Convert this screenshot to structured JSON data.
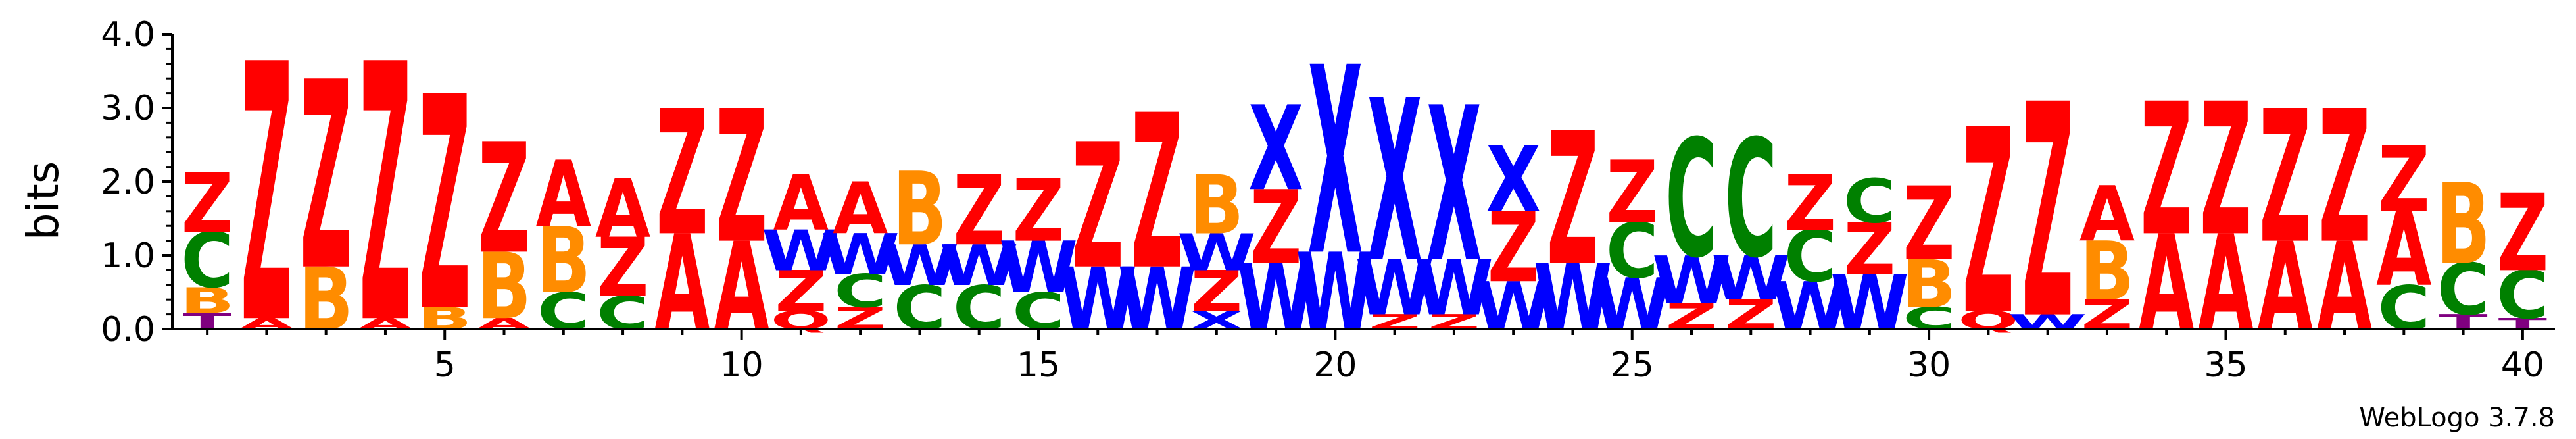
{
  "chart_data": {
    "type": "sequence-logo",
    "ylabel": "bits",
    "ylim": [
      0,
      4.0
    ],
    "y_ticks": [
      "0.0",
      "1.0",
      "2.0",
      "3.0",
      "4.0"
    ],
    "x_ticks": [
      5,
      10,
      15,
      20,
      25,
      30,
      35,
      40
    ],
    "positions_count": 40,
    "credit": "WebLogo 3.7.8",
    "colors": {
      "Z": "#ff0000",
      "A": "#ff0000",
      "Q": "#ff0000",
      "W": "#0000ff",
      "X": "#0000ff",
      "C": "#008000",
      "B": "#ff8c00",
      "T": "#800080"
    },
    "columns": [
      [
        [
          "T",
          0.22
        ],
        [
          "B",
          0.35
        ],
        [
          "C",
          0.75
        ],
        [
          "Z",
          0.8
        ]
      ],
      [
        [
          "A",
          0.15
        ],
        [
          "Z",
          3.5
        ]
      ],
      [
        [
          "B",
          0.85
        ],
        [
          "Z",
          2.55
        ]
      ],
      [
        [
          "A",
          0.15
        ],
        [
          "Z",
          3.5
        ]
      ],
      [
        [
          "B",
          0.3
        ],
        [
          "Z",
          2.9
        ]
      ],
      [
        [
          "A",
          0.15
        ],
        [
          "B",
          0.9
        ],
        [
          "Z",
          1.5
        ]
      ],
      [
        [
          "C",
          0.5
        ],
        [
          "B",
          0.9
        ],
        [
          "A",
          0.9
        ]
      ],
      [
        [
          "C",
          0.45
        ],
        [
          "Z",
          0.8
        ],
        [
          "A",
          0.8
        ]
      ],
      [
        [
          "A",
          1.3
        ],
        [
          "Z",
          1.7
        ]
      ],
      [
        [
          "A",
          1.2
        ],
        [
          "Z",
          1.8
        ]
      ],
      [
        [
          "Q",
          0.25
        ],
        [
          "Z",
          0.55
        ],
        [
          "W",
          0.55
        ],
        [
          "A",
          0.75
        ]
      ],
      [
        [
          "Z",
          0.3
        ],
        [
          "C",
          0.45
        ],
        [
          "W",
          0.55
        ],
        [
          "A",
          0.7
        ]
      ],
      [
        [
          "C",
          0.6
        ],
        [
          "W",
          0.55
        ],
        [
          "B",
          1.0
        ]
      ],
      [
        [
          "C",
          0.6
        ],
        [
          "W",
          0.55
        ],
        [
          "Z",
          0.95
        ]
      ],
      [
        [
          "C",
          0.5
        ],
        [
          "W",
          0.7
        ],
        [
          "Z",
          0.85
        ]
      ],
      [
        [
          "W",
          0.85
        ],
        [
          "Z",
          1.7
        ]
      ],
      [
        [
          "W",
          0.85
        ],
        [
          "Z",
          2.1
        ]
      ],
      [
        [
          "X",
          0.25
        ],
        [
          "Z",
          0.55
        ],
        [
          "W",
          0.5
        ],
        [
          "B",
          0.8
        ]
      ],
      [
        [
          "W",
          0.9
        ],
        [
          "Z",
          1.0
        ],
        [
          "X",
          1.15
        ]
      ],
      [
        [
          "W",
          1.05
        ],
        [
          "X",
          2.55
        ]
      ],
      [
        [
          "Z",
          0.2
        ],
        [
          "W",
          0.75
        ],
        [
          "X",
          2.2
        ]
      ],
      [
        [
          "Z",
          0.2
        ],
        [
          "W",
          0.75
        ],
        [
          "X",
          2.1
        ]
      ],
      [
        [
          "W",
          0.65
        ],
        [
          "Z",
          0.95
        ],
        [
          "X",
          0.9
        ]
      ],
      [
        [
          "W",
          0.9
        ],
        [
          "Z",
          1.8
        ]
      ],
      [
        [
          "W",
          0.7
        ],
        [
          "C",
          0.75
        ],
        [
          "Z",
          0.85
        ]
      ],
      [
        [
          "Z",
          0.35
        ],
        [
          "W",
          0.65
        ],
        [
          "C",
          1.6
        ]
      ],
      [
        [
          "Z",
          0.4
        ],
        [
          "W",
          0.6
        ],
        [
          "C",
          1.6
        ]
      ],
      [
        [
          "W",
          0.65
        ],
        [
          "C",
          0.7
        ],
        [
          "Z",
          0.75
        ]
      ],
      [
        [
          "W",
          0.75
        ],
        [
          "Z",
          0.7
        ],
        [
          "C",
          0.6
        ]
      ],
      [
        [
          "C",
          0.3
        ],
        [
          "B",
          0.65
        ],
        [
          "Z",
          1.0
        ]
      ],
      [
        [
          "Q",
          0.25
        ],
        [
          "Z",
          2.5
        ]
      ],
      [
        [
          "W",
          0.2
        ],
        [
          "Z",
          2.9
        ]
      ],
      [
        [
          "Z",
          0.4
        ],
        [
          "B",
          0.8
        ],
        [
          "A",
          0.75
        ]
      ],
      [
        [
          "A",
          1.3
        ],
        [
          "Z",
          1.8
        ]
      ],
      [
        [
          "A",
          1.3
        ],
        [
          "Z",
          1.8
        ]
      ],
      [
        [
          "A",
          1.2
        ],
        [
          "Z",
          1.8
        ]
      ],
      [
        [
          "A",
          1.2
        ],
        [
          "Z",
          1.8
        ]
      ],
      [
        [
          "C",
          0.6
        ],
        [
          "A",
          1.0
        ],
        [
          "Z",
          0.9
        ]
      ],
      [
        [
          "T",
          0.2
        ],
        [
          "C",
          0.7
        ],
        [
          "B",
          1.1
        ]
      ],
      [
        [
          "T",
          0.15
        ],
        [
          "C",
          0.65
        ],
        [
          "Z",
          1.05
        ]
      ]
    ]
  }
}
